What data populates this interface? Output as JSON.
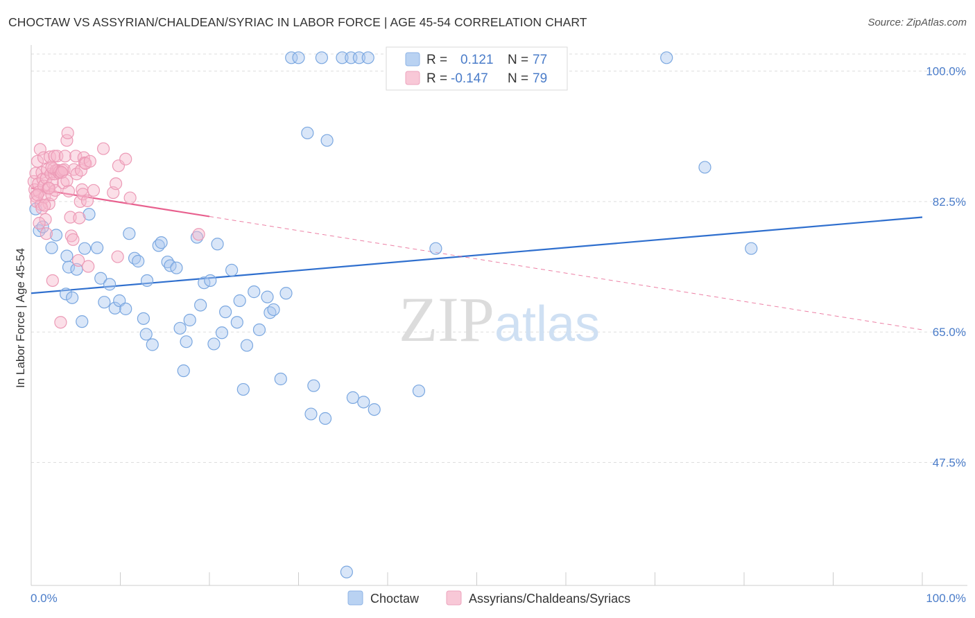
{
  "title": "CHOCTAW VS ASSYRIAN/CHALDEAN/SYRIAC IN LABOR FORCE | AGE 45-54 CORRELATION CHART",
  "source": "Source: ZipAtlas.com",
  "watermark": {
    "zip": "ZIP",
    "atlas": "atlas"
  },
  "colors": {
    "blue": "#4a7cc9",
    "blue_fill": "#aac8f0",
    "blue_line": "#2f6fce",
    "pink": "#e0709a",
    "pink_fill": "#f6b8cc",
    "pink_line": "#e8608e",
    "grid": "#dddddd",
    "text": "#333333"
  },
  "legend": {
    "rows": [
      {
        "r_label": "R =",
        "r_value": "0.121",
        "n_label": "N =",
        "n_value": "77"
      },
      {
        "r_label": "R =",
        "r_value": "-0.147",
        "n_label": "N =",
        "n_value": "79"
      }
    ]
  },
  "chart_data": {
    "type": "scatter",
    "title": "CHOCTAW VS ASSYRIAN/CHALDEAN/SYRIAC IN LABOR FORCE | AGE 45-54 CORRELATION CHART",
    "xlabel": "",
    "ylabel": "In Labor Force | Age 45-54",
    "xlim": [
      0,
      100
    ],
    "ylim": [
      31,
      103.5
    ],
    "x_tick_labels": [
      "0.0%",
      "100.0%"
    ],
    "y_ticks": [
      47.5,
      65.0,
      82.5,
      100.0
    ],
    "y_tick_labels": [
      "47.5%",
      "65.0%",
      "82.5%",
      "100.0%"
    ],
    "grid": true,
    "series": [
      {
        "name": "Choctaw",
        "R": 0.121,
        "N": 77,
        "trend": {
          "x0": 0,
          "y0": 70.2,
          "x1": 100,
          "y1": 80.4,
          "style": "solid"
        },
        "points": [
          [
            0.5,
            81.5
          ],
          [
            0.9,
            78.6
          ],
          [
            1.3,
            79.1
          ],
          [
            2.3,
            76.3
          ],
          [
            2.8,
            78.0
          ],
          [
            3.9,
            70.1
          ],
          [
            4.0,
            75.2
          ],
          [
            4.2,
            73.7
          ],
          [
            4.6,
            69.6
          ],
          [
            5.1,
            73.4
          ],
          [
            5.7,
            66.4
          ],
          [
            6.0,
            76.2
          ],
          [
            6.5,
            80.8
          ],
          [
            7.4,
            76.3
          ],
          [
            7.8,
            72.2
          ],
          [
            8.2,
            69.0
          ],
          [
            8.8,
            71.4
          ],
          [
            9.4,
            68.2
          ],
          [
            9.9,
            69.2
          ],
          [
            10.6,
            68.1
          ],
          [
            11.0,
            78.2
          ],
          [
            11.6,
            74.9
          ],
          [
            12.0,
            74.5
          ],
          [
            12.6,
            66.8
          ],
          [
            12.9,
            64.7
          ],
          [
            13.0,
            71.9
          ],
          [
            13.6,
            63.3
          ],
          [
            14.3,
            76.6
          ],
          [
            14.6,
            77.0
          ],
          [
            15.3,
            74.4
          ],
          [
            15.6,
            73.9
          ],
          [
            16.3,
            73.6
          ],
          [
            16.7,
            65.5
          ],
          [
            17.1,
            59.8
          ],
          [
            17.4,
            63.7
          ],
          [
            17.8,
            66.6
          ],
          [
            18.6,
            77.7
          ],
          [
            19.0,
            68.6
          ],
          [
            19.4,
            71.6
          ],
          [
            20.1,
            71.9
          ],
          [
            20.5,
            63.4
          ],
          [
            20.9,
            76.8
          ],
          [
            21.4,
            64.9
          ],
          [
            21.8,
            67.7
          ],
          [
            22.5,
            73.3
          ],
          [
            23.1,
            66.3
          ],
          [
            23.4,
            69.2
          ],
          [
            23.8,
            57.3
          ],
          [
            24.2,
            63.2
          ],
          [
            25.0,
            70.4
          ],
          [
            25.6,
            65.3
          ],
          [
            26.5,
            69.7
          ],
          [
            26.8,
            67.6
          ],
          [
            27.2,
            68.0
          ],
          [
            28.0,
            58.7
          ],
          [
            28.6,
            70.2
          ],
          [
            29.2,
            101.8
          ],
          [
            30.0,
            101.8
          ],
          [
            31.0,
            91.7
          ],
          [
            31.4,
            54.0
          ],
          [
            31.7,
            57.8
          ],
          [
            32.6,
            101.8
          ],
          [
            33.0,
            53.4
          ],
          [
            33.2,
            90.7
          ],
          [
            34.9,
            101.8
          ],
          [
            35.4,
            32.8
          ],
          [
            35.9,
            101.8
          ],
          [
            36.1,
            56.2
          ],
          [
            36.8,
            101.8
          ],
          [
            37.3,
            55.6
          ],
          [
            37.8,
            101.8
          ],
          [
            38.5,
            54.6
          ],
          [
            43.5,
            57.1
          ],
          [
            45.4,
            76.2
          ],
          [
            71.3,
            101.8
          ],
          [
            75.6,
            87.1
          ],
          [
            80.8,
            76.2
          ]
        ]
      },
      {
        "name": "Assyrians/Chaldeans/Syriacs",
        "R": -0.147,
        "N": 79,
        "trend": {
          "x0": 0,
          "y0": 84.3,
          "x1": 100,
          "y1": 65.3,
          "solid_until_x": 20,
          "style": "solid-then-dashed"
        },
        "points": [
          [
            0.3,
            85.2
          ],
          [
            0.4,
            84.1
          ],
          [
            0.5,
            86.3
          ],
          [
            0.5,
            83.2
          ],
          [
            0.6,
            82.5
          ],
          [
            0.7,
            87.9
          ],
          [
            0.8,
            84.9
          ],
          [
            0.9,
            83.8
          ],
          [
            1.0,
            89.5
          ],
          [
            1.1,
            82.1
          ],
          [
            1.2,
            86.4
          ],
          [
            1.3,
            85.5
          ],
          [
            1.4,
            84.6
          ],
          [
            1.4,
            88.4
          ],
          [
            1.5,
            83.1
          ],
          [
            1.6,
            80.1
          ],
          [
            1.7,
            85.6
          ],
          [
            1.7,
            78.2
          ],
          [
            1.8,
            86.8
          ],
          [
            1.9,
            84.3
          ],
          [
            2.0,
            82.2
          ],
          [
            2.1,
            88.5
          ],
          [
            2.2,
            86.2
          ],
          [
            2.3,
            83.4
          ],
          [
            2.4,
            85.0
          ],
          [
            2.4,
            71.9
          ],
          [
            2.5,
            86.9
          ],
          [
            2.6,
            88.6
          ],
          [
            2.6,
            86.2
          ],
          [
            2.7,
            84.0
          ],
          [
            2.8,
            86.7
          ],
          [
            2.9,
            88.6
          ],
          [
            3.0,
            86.7
          ],
          [
            3.1,
            86.4
          ],
          [
            3.2,
            86.6
          ],
          [
            3.3,
            66.3
          ],
          [
            3.4,
            86.4
          ],
          [
            3.5,
            86.7
          ],
          [
            3.6,
            85.0
          ],
          [
            3.7,
            86.8
          ],
          [
            3.8,
            88.6
          ],
          [
            4.0,
            90.7
          ],
          [
            4.1,
            91.7
          ],
          [
            4.2,
            83.9
          ],
          [
            4.4,
            80.4
          ],
          [
            4.5,
            77.9
          ],
          [
            4.7,
            77.4
          ],
          [
            4.8,
            86.8
          ],
          [
            5.0,
            88.6
          ],
          [
            5.1,
            86.2
          ],
          [
            5.3,
            74.6
          ],
          [
            5.4,
            80.3
          ],
          [
            5.5,
            82.5
          ],
          [
            5.6,
            86.7
          ],
          [
            5.7,
            84.1
          ],
          [
            5.8,
            83.5
          ],
          [
            5.9,
            88.4
          ],
          [
            6.0,
            87.7
          ],
          [
            6.1,
            87.6
          ],
          [
            6.3,
            82.6
          ],
          [
            6.4,
            73.8
          ],
          [
            6.6,
            87.9
          ],
          [
            7.0,
            84.0
          ],
          [
            8.1,
            89.6
          ],
          [
            9.2,
            83.7
          ],
          [
            9.5,
            84.9
          ],
          [
            9.7,
            75.1
          ],
          [
            9.8,
            87.3
          ],
          [
            10.6,
            88.2
          ],
          [
            11.1,
            83.0
          ],
          [
            18.8,
            78.1
          ],
          [
            0.9,
            79.6
          ],
          [
            1.2,
            81.6
          ],
          [
            2.0,
            84.3
          ],
          [
            2.3,
            87.1
          ],
          [
            3.4,
            86.4
          ],
          [
            4.0,
            85.3
          ],
          [
            0.7,
            83.4
          ],
          [
            1.5,
            82.0
          ]
        ]
      }
    ]
  }
}
